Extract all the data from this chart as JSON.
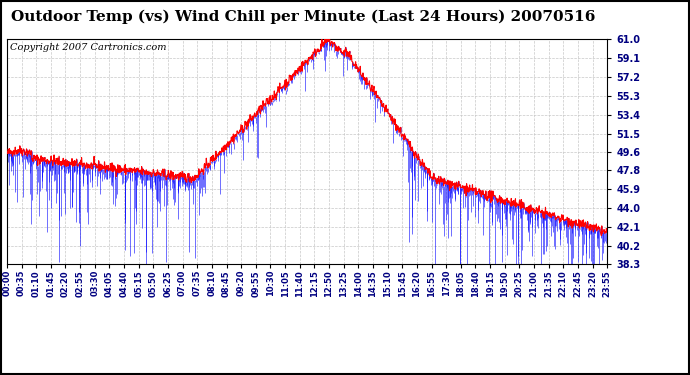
{
  "title": "Outdoor Temp (vs) Wind Chill per Minute (Last 24 Hours) 20070516",
  "copyright": "Copyright 2007 Cartronics.com",
  "yticks": [
    38.3,
    40.2,
    42.1,
    44.0,
    45.9,
    47.8,
    49.6,
    51.5,
    53.4,
    55.3,
    57.2,
    59.1,
    61.0
  ],
  "xtick_labels": [
    "00:00",
    "00:35",
    "01:10",
    "01:45",
    "02:20",
    "02:55",
    "03:30",
    "04:05",
    "04:40",
    "05:15",
    "05:50",
    "06:25",
    "07:00",
    "07:35",
    "08:10",
    "08:45",
    "09:20",
    "09:55",
    "10:30",
    "11:05",
    "11:40",
    "12:15",
    "12:50",
    "13:25",
    "14:00",
    "14:35",
    "15:10",
    "15:45",
    "16:20",
    "16:55",
    "17:30",
    "18:05",
    "18:40",
    "19:15",
    "19:50",
    "20:25",
    "21:00",
    "21:35",
    "22:10",
    "22:45",
    "23:20",
    "23:55"
  ],
  "ymin": 38.3,
  "ymax": 61.0,
  "background_color": "#ffffff",
  "plot_bg_color": "#ffffff",
  "grid_color": "#c8c8c8",
  "outer_border_color": "#000000",
  "temp_line_color": "#ff0000",
  "windchill_bar_color": "#0000ff",
  "title_fontsize": 11,
  "copyright_fontsize": 7,
  "ytick_fontsize": 7,
  "xtick_fontsize": 6
}
